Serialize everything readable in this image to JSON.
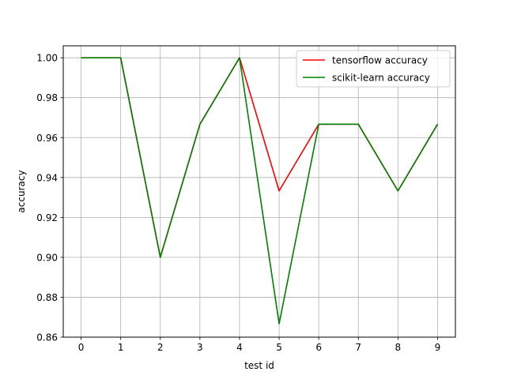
{
  "chart_data": {
    "type": "line",
    "title": "",
    "xlabel": "test id",
    "ylabel": "accuracy",
    "x": [
      0,
      1,
      2,
      3,
      4,
      5,
      6,
      7,
      8,
      9
    ],
    "xlim": [
      -0.45,
      9.45
    ],
    "ylim": [
      0.86,
      1.006
    ],
    "xticks": [
      0,
      1,
      2,
      3,
      4,
      5,
      6,
      7,
      8,
      9
    ],
    "yticks": [
      0.86,
      0.88,
      0.9,
      0.92,
      0.94,
      0.96,
      0.98,
      1.0
    ],
    "ytick_labels": [
      "0.86",
      "0.88",
      "0.90",
      "0.92",
      "0.94",
      "0.96",
      "0.98",
      "1.00"
    ],
    "grid": true,
    "legend_position": "upper right",
    "series": [
      {
        "name": "tensorflow accuracy",
        "color": "#ff0000",
        "values": [
          1.0,
          1.0,
          0.9,
          0.9667,
          1.0,
          0.9333,
          0.9667,
          0.9667,
          0.9333,
          0.9667
        ]
      },
      {
        "name": "scikit-learn accuracy",
        "color": "#008000",
        "values": [
          1.0,
          1.0,
          0.9,
          0.9667,
          1.0,
          0.8667,
          0.9667,
          0.9667,
          0.9333,
          0.9667
        ]
      }
    ]
  }
}
